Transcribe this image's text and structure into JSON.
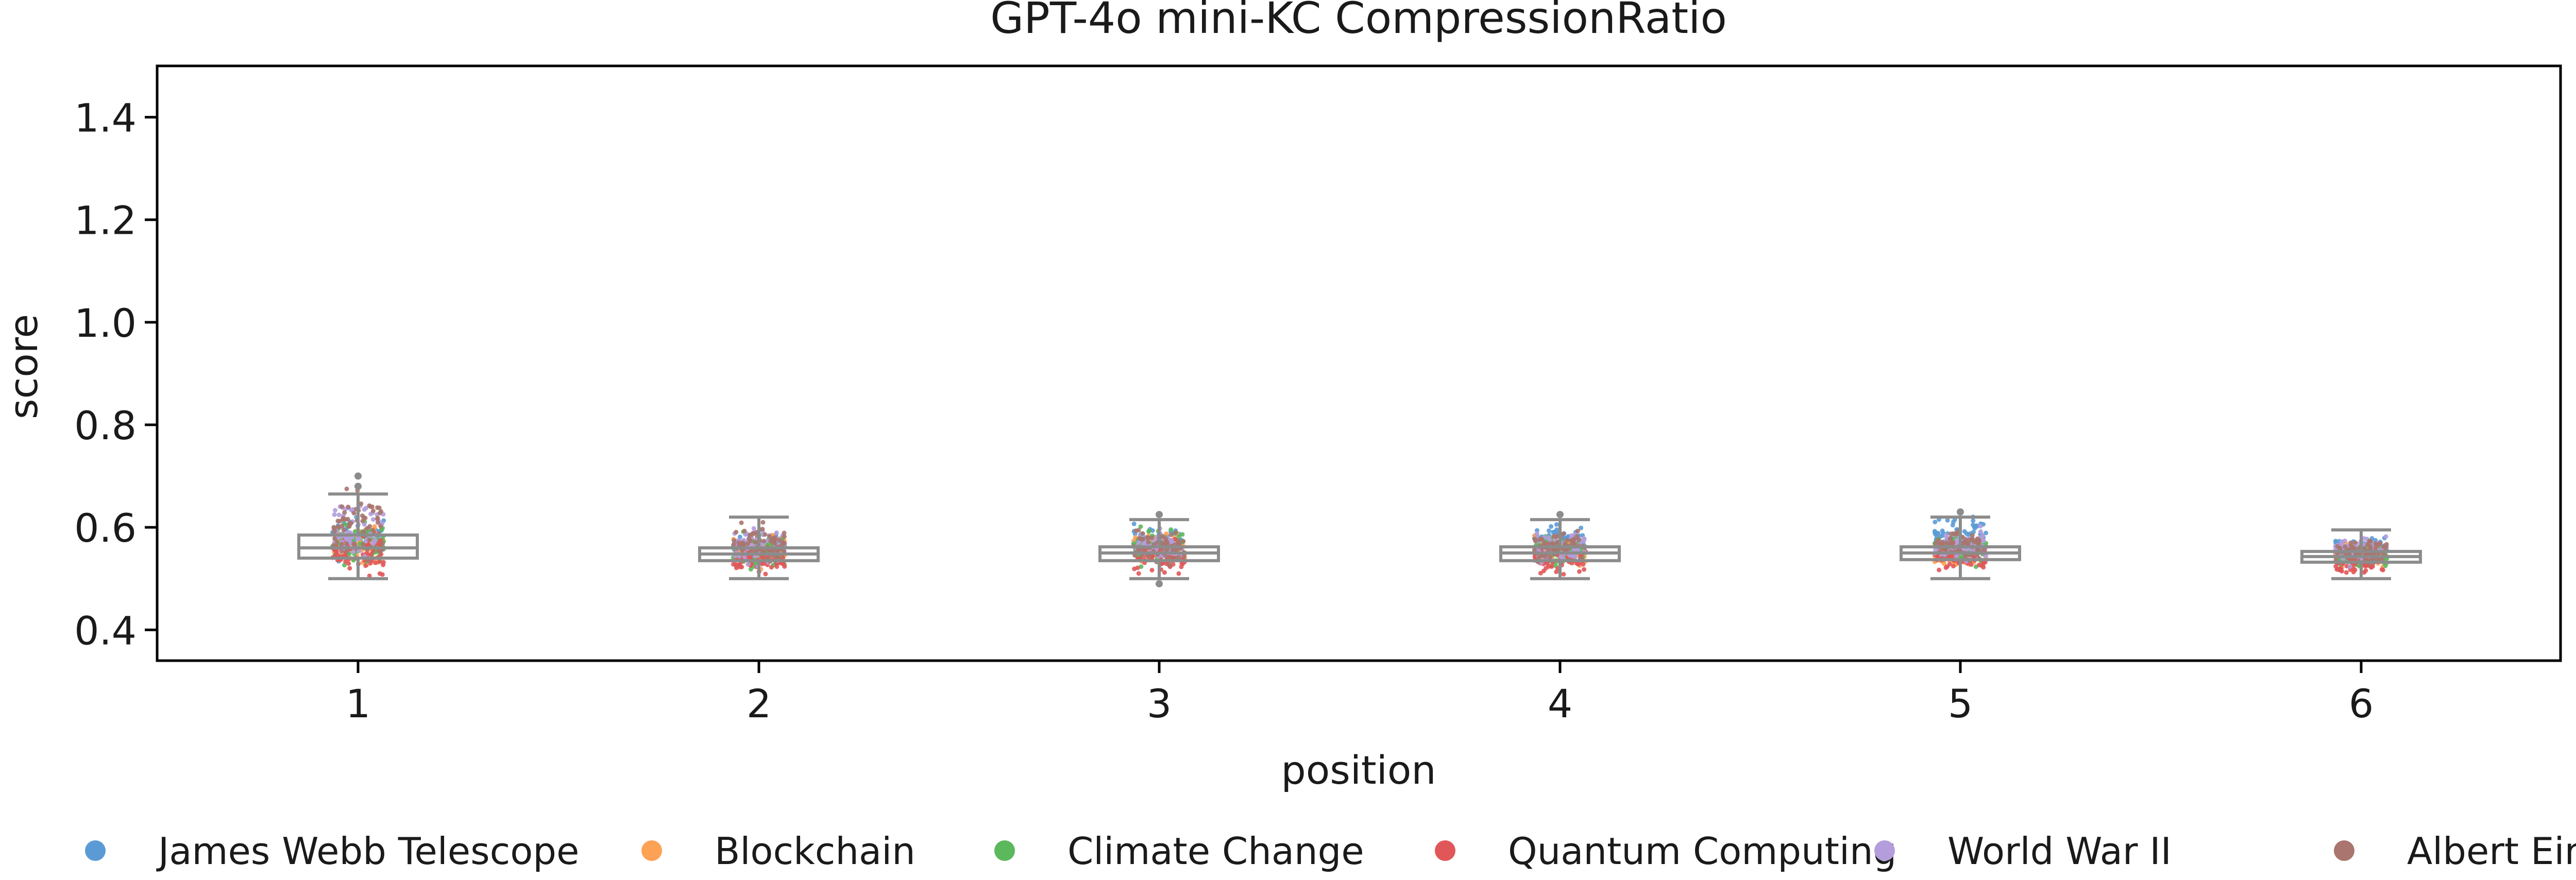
{
  "chart_data": {
    "type": "box",
    "title": "GPT-4o mini-KC CompressionRatio",
    "xlabel": "position",
    "ylabel": "score",
    "ylim": [
      0.34,
      1.5
    ],
    "yticks": [
      "0.4",
      "0.6",
      "0.8",
      "1.0",
      "1.2",
      "1.4"
    ],
    "ytick_values": [
      0.4,
      0.6,
      0.8,
      1.0,
      1.2,
      1.4
    ],
    "categories": [
      "1",
      "2",
      "3",
      "4",
      "5",
      "6"
    ],
    "overlay": "jittered strip points per topic",
    "legend_position": "bottom",
    "boxes": [
      {
        "position": "1",
        "whislo": 0.5,
        "q1": 0.54,
        "med": 0.56,
        "q3": 0.585,
        "whishi": 0.665,
        "fliers": [
          0.68,
          0.7
        ]
      },
      {
        "position": "2",
        "whislo": 0.5,
        "q1": 0.535,
        "med": 0.548,
        "q3": 0.56,
        "whishi": 0.62,
        "fliers": []
      },
      {
        "position": "3",
        "whislo": 0.5,
        "q1": 0.535,
        "med": 0.55,
        "q3": 0.562,
        "whishi": 0.615,
        "fliers": [
          0.49,
          0.625
        ]
      },
      {
        "position": "4",
        "whislo": 0.5,
        "q1": 0.535,
        "med": 0.55,
        "q3": 0.562,
        "whishi": 0.615,
        "fliers": [
          0.625
        ]
      },
      {
        "position": "5",
        "whislo": 0.5,
        "q1": 0.537,
        "med": 0.55,
        "q3": 0.562,
        "whishi": 0.62,
        "fliers": [
          0.63
        ]
      },
      {
        "position": "6",
        "whislo": 0.5,
        "q1": 0.532,
        "med": 0.543,
        "q3": 0.553,
        "whishi": 0.595,
        "fliers": []
      }
    ],
    "series": [
      {
        "name": "James Webb Telescope",
        "color": "#5b9bd5",
        "y_range_by_position": [
          [
            0.52,
            0.64
          ],
          [
            0.52,
            0.6
          ],
          [
            0.53,
            0.61
          ],
          [
            0.54,
            0.61
          ],
          [
            0.54,
            0.63
          ],
          [
            0.52,
            0.59
          ]
        ]
      },
      {
        "name": "Blockchain",
        "color": "#fda155",
        "y_range_by_position": [
          [
            0.51,
            0.62
          ],
          [
            0.51,
            0.6
          ],
          [
            0.51,
            0.6
          ],
          [
            0.51,
            0.59
          ],
          [
            0.51,
            0.59
          ],
          [
            0.51,
            0.58
          ]
        ]
      },
      {
        "name": "Climate Change",
        "color": "#5cb85c",
        "y_range_by_position": [
          [
            0.51,
            0.63
          ],
          [
            0.51,
            0.6
          ],
          [
            0.51,
            0.61
          ],
          [
            0.51,
            0.6
          ],
          [
            0.51,
            0.6
          ],
          [
            0.51,
            0.58
          ]
        ]
      },
      {
        "name": "Quantum Computing",
        "color": "#e15759",
        "y_range_by_position": [
          [
            0.5,
            0.6
          ],
          [
            0.5,
            0.58
          ],
          [
            0.5,
            0.58
          ],
          [
            0.5,
            0.58
          ],
          [
            0.5,
            0.58
          ],
          [
            0.5,
            0.57
          ]
        ]
      },
      {
        "name": "World War II",
        "color": "#b39ddb",
        "y_range_by_position": [
          [
            0.52,
            0.68
          ],
          [
            0.52,
            0.61
          ],
          [
            0.52,
            0.6
          ],
          [
            0.52,
            0.6
          ],
          [
            0.52,
            0.61
          ],
          [
            0.52,
            0.59
          ]
        ]
      },
      {
        "name": "Albert Einstein",
        "color": "#a9756e",
        "y_range_by_position": [
          [
            0.52,
            0.69
          ],
          [
            0.52,
            0.62
          ],
          [
            0.52,
            0.61
          ],
          [
            0.52,
            0.6
          ],
          [
            0.52,
            0.61
          ],
          [
            0.52,
            0.59
          ]
        ]
      }
    ],
    "grid": false
  }
}
